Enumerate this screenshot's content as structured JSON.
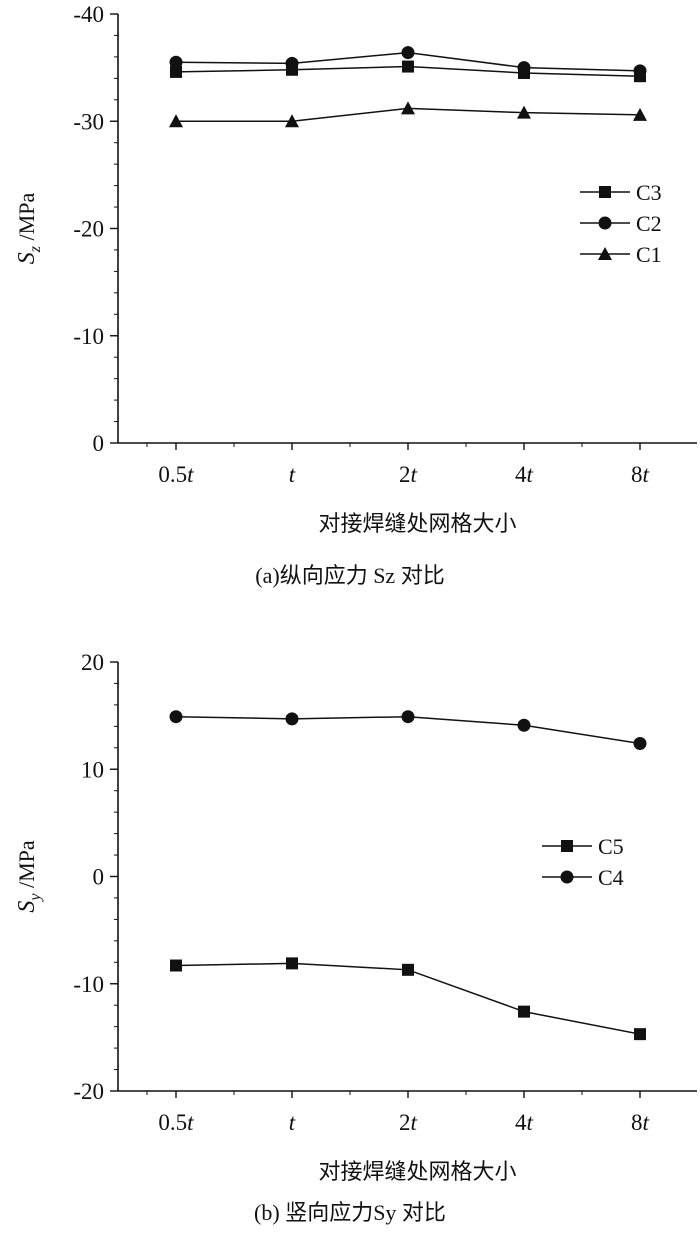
{
  "chart_data": [
    {
      "type": "line",
      "categories": [
        "0.5t",
        "t",
        "2t",
        "4t",
        "8t"
      ],
      "ylim": [
        0,
        -40
      ],
      "yticks": [
        -40,
        -30,
        -20,
        -10,
        0
      ],
      "y_inverted": true,
      "ylabel": "Sz /MPa",
      "xlabel": "对接焊缝处网格大小",
      "caption": "(a)纵向应力 Sz 对比",
      "legend_position": "right",
      "grid": false,
      "series": [
        {
          "name": "C3",
          "marker": "square",
          "values": [
            -34.6,
            -34.8,
            -35.1,
            -34.5,
            -34.2
          ]
        },
        {
          "name": "C2",
          "marker": "circle",
          "values": [
            -35.5,
            -35.4,
            -36.4,
            -35.0,
            -34.7
          ]
        },
        {
          "name": "C1",
          "marker": "triangle",
          "values": [
            -30.0,
            -30.0,
            -31.2,
            -30.8,
            -30.6
          ]
        }
      ]
    },
    {
      "type": "line",
      "categories": [
        "0.5t",
        "t",
        "2t",
        "4t",
        "8t"
      ],
      "ylim": [
        -20,
        20
      ],
      "yticks": [
        20,
        10,
        0,
        -10,
        -20
      ],
      "ylabel": "Sy /MPa",
      "xlabel": "对接焊缝处网格大小",
      "caption": "(b) 竖向应力Sy 对比",
      "legend_position": "right",
      "grid": false,
      "series": [
        {
          "name": "C5",
          "marker": "square",
          "values": [
            -8.3,
            -8.1,
            -8.7,
            -12.6,
            -14.7
          ]
        },
        {
          "name": "C4",
          "marker": "circle",
          "values": [
            14.9,
            14.7,
            14.9,
            14.1,
            12.4
          ]
        }
      ]
    }
  ]
}
